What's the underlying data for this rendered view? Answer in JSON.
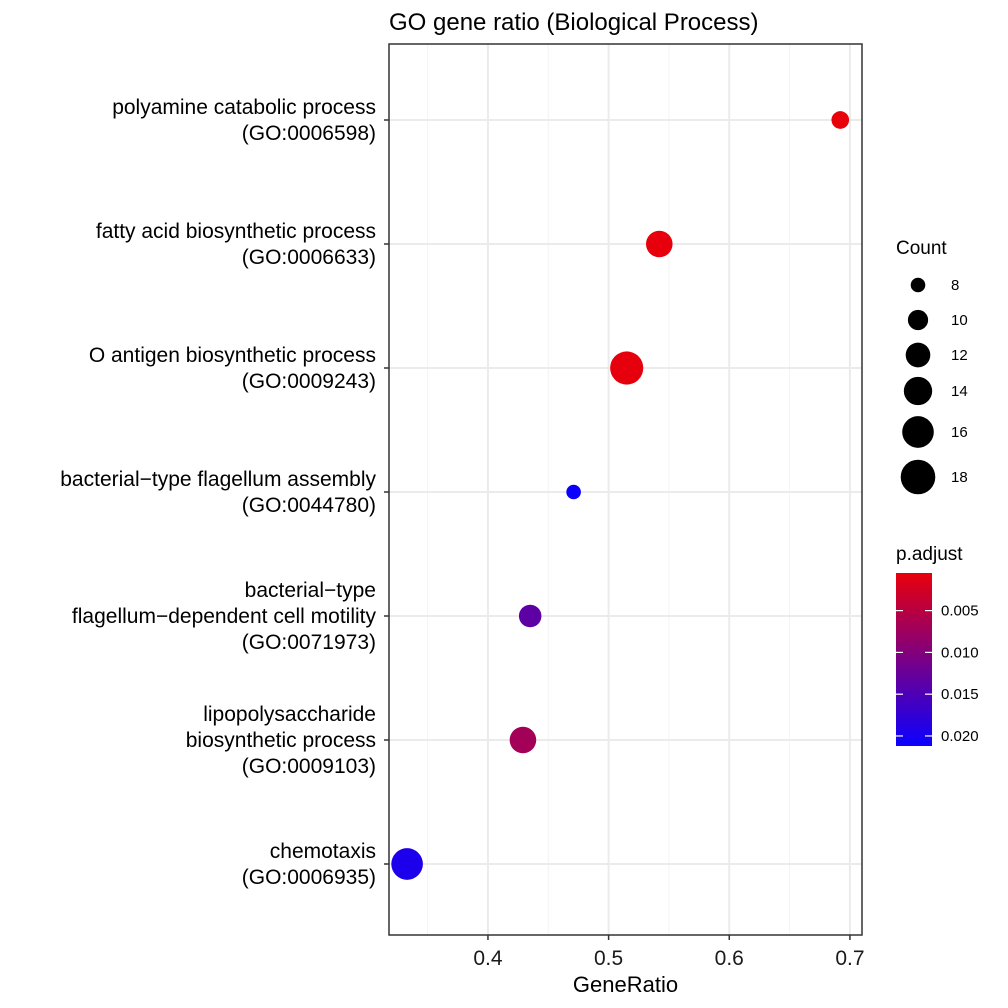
{
  "chart_data": {
    "type": "scatter",
    "title": "GO gene ratio (Biological Process)",
    "xlabel": "GeneRatio",
    "ylabel": "",
    "xlim": [
      0.318,
      0.71
    ],
    "xticks": [
      0.4,
      0.5,
      0.6,
      0.7
    ],
    "xtick_labels": [
      "0.4",
      "0.5",
      "0.6",
      "0.7"
    ],
    "grid": true,
    "legend_position": "right",
    "categories": [
      [
        "polyamine catabolic process",
        "(GO:0006598)"
      ],
      [
        "fatty acid biosynthetic process",
        "(GO:0006633)"
      ],
      [
        "O antigen biosynthetic process",
        "(GO:0009243)"
      ],
      [
        "bacterial−type flagellum assembly",
        "(GO:0044780)"
      ],
      [
        "bacterial−type",
        "flagellum−dependent cell motility",
        "(GO:0071973)"
      ],
      [
        "lipopolysaccharide",
        "biosynthetic process",
        "(GO:0009103)"
      ],
      [
        "chemotaxis",
        "(GO:0006935)"
      ]
    ],
    "points": [
      {
        "gene_ratio": 0.692,
        "count": 9,
        "p_adjust": 0.0005
      },
      {
        "gene_ratio": 0.542,
        "count": 13,
        "p_adjust": 0.0006
      },
      {
        "gene_ratio": 0.515,
        "count": 17,
        "p_adjust": 0.0007
      },
      {
        "gene_ratio": 0.471,
        "count": 8,
        "p_adjust": 0.0212
      },
      {
        "gene_ratio": 0.435,
        "count": 11,
        "p_adjust": 0.0135
      },
      {
        "gene_ratio": 0.429,
        "count": 13,
        "p_adjust": 0.007
      },
      {
        "gene_ratio": 0.333,
        "count": 16,
        "p_adjust": 0.0195
      }
    ],
    "size_legend": {
      "title": "Count",
      "values": [
        8,
        10,
        12,
        14,
        16,
        18
      ],
      "labels": [
        "8",
        "10",
        "12",
        "14",
        "16",
        "18"
      ]
    },
    "color_legend": {
      "title": "p.adjust",
      "range": [
        0.0005,
        0.0212
      ],
      "low_color": "#e8000b",
      "high_color": "#0b00ff",
      "ticks": [
        0.005,
        0.01,
        0.015,
        0.02
      ],
      "tick_labels": [
        "0.005",
        "0.010",
        "0.015",
        "0.020"
      ]
    }
  }
}
